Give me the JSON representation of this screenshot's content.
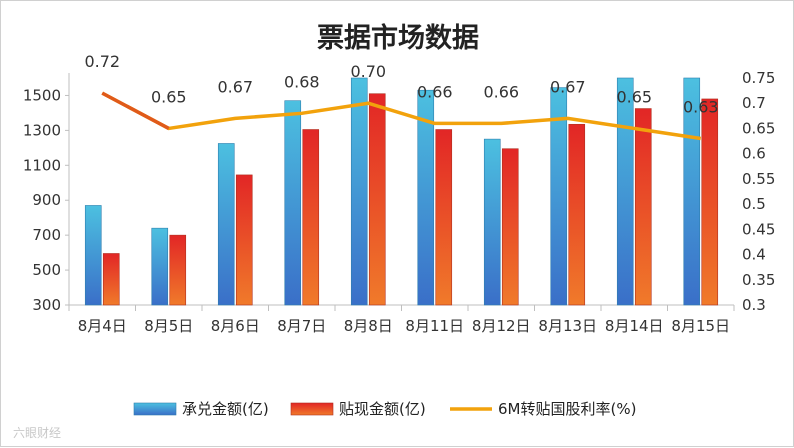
{
  "chart_data": {
    "type": "bar",
    "title": "票据市场数据",
    "categories": [
      "8月4日",
      "8月5日",
      "8月6日",
      "8月7日",
      "8月8日",
      "8月11日",
      "8月12日",
      "8月13日",
      "8月14日",
      "8月15日"
    ],
    "series": [
      {
        "name": "承兑金额(亿)",
        "type": "bar",
        "axis": "left",
        "color": "#3a9fd0",
        "values": [
          870,
          740,
          1225,
          1470,
          1600,
          1530,
          1250,
          1545,
          1600,
          1600
        ]
      },
      {
        "name": "贴现金额(亿)",
        "type": "bar",
        "axis": "left",
        "color": "#e8402a",
        "values": [
          595,
          700,
          1045,
          1305,
          1510,
          1305,
          1195,
          1335,
          1425,
          1480
        ]
      },
      {
        "name": "6M转贴国股利率(%)",
        "type": "line",
        "axis": "right",
        "color": "#f2a20c",
        "values": [
          0.72,
          0.65,
          0.67,
          0.68,
          0.7,
          0.66,
          0.66,
          0.67,
          0.65,
          0.63
        ],
        "labels": [
          "0.72",
          "0.65",
          "0.67",
          "0.68",
          "0.70",
          "0.66",
          "0.66",
          "0.67",
          "0.65",
          "0.63"
        ]
      }
    ],
    "y_left": {
      "ylim": [
        300,
        1600
      ],
      "ticks": [
        "300",
        "500",
        "700",
        "900",
        "1100",
        "1300",
        "1500"
      ]
    },
    "y_right": {
      "ylim": [
        0.3,
        0.75
      ],
      "ticks": [
        "0.3",
        "0.35",
        "0.4",
        "0.45",
        "0.5",
        "0.55",
        "0.6",
        "0.65",
        "0.7",
        "0.75"
      ]
    },
    "legend": "bottom",
    "grid": false
  },
  "watermark": "六眼财经"
}
